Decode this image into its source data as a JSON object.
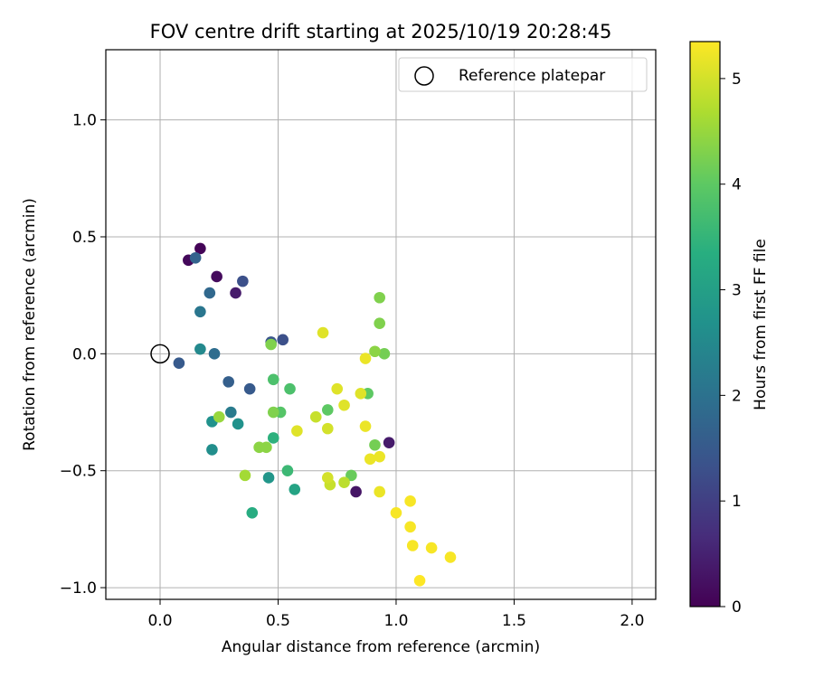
{
  "chart_data": {
    "type": "scatter",
    "title": "FOV centre drift starting at 2025/10/19 20:28:45",
    "xlabel": "Angular distance from reference (arcmin)",
    "ylabel": "Rotation from reference (arcmin)",
    "xlim": [
      -0.23,
      2.1
    ],
    "ylim": [
      -1.05,
      1.3
    ],
    "xticks": [
      0.0,
      0.5,
      1.0,
      1.5,
      2.0
    ],
    "xtick_labels": [
      "0.0",
      "0.5",
      "1.0",
      "1.5",
      "2.0"
    ],
    "yticks": [
      -1.0,
      -0.5,
      0.0,
      0.5,
      1.0
    ],
    "ytick_labels": [
      "−1.0",
      "−0.5",
      "0.0",
      "0.5",
      "1.0"
    ],
    "grid": true,
    "legend": {
      "label": "Reference platepar",
      "location": "top-right"
    },
    "reference_point": {
      "x": 0.0,
      "y": 0.0
    },
    "colorbar": {
      "label": "Hours from first FF file",
      "colormap": "viridis",
      "range": [
        0,
        5.35
      ],
      "ticks": [
        0,
        1,
        2,
        3,
        4,
        5
      ],
      "tick_labels": [
        "0",
        "1",
        "2",
        "3",
        "4",
        "5"
      ]
    },
    "points": [
      {
        "x": 0.17,
        "y": 0.45,
        "h": 0.05
      },
      {
        "x": 0.12,
        "y": 0.4,
        "h": 0.1
      },
      {
        "x": 0.24,
        "y": 0.33,
        "h": 0.15
      },
      {
        "x": 0.32,
        "y": 0.26,
        "h": 0.4
      },
      {
        "x": 0.97,
        "y": -0.38,
        "h": 0.4
      },
      {
        "x": 0.83,
        "y": -0.59,
        "h": 0.3
      },
      {
        "x": 0.35,
        "y": 0.31,
        "h": 1.3
      },
      {
        "x": 0.47,
        "y": 0.05,
        "h": 1.4
      },
      {
        "x": 0.52,
        "y": 0.06,
        "h": 1.3
      },
      {
        "x": 0.08,
        "y": -0.04,
        "h": 1.5
      },
      {
        "x": 0.38,
        "y": -0.15,
        "h": 1.5
      },
      {
        "x": 0.29,
        "y": -0.12,
        "h": 1.6
      },
      {
        "x": 0.15,
        "y": 0.41,
        "h": 1.7
      },
      {
        "x": 0.21,
        "y": 0.26,
        "h": 1.8
      },
      {
        "x": 0.23,
        "y": 0.0,
        "h": 1.9
      },
      {
        "x": 0.17,
        "y": 0.18,
        "h": 2.1
      },
      {
        "x": 0.3,
        "y": -0.25,
        "h": 2.2
      },
      {
        "x": 0.17,
        "y": 0.02,
        "h": 2.5
      },
      {
        "x": 0.22,
        "y": -0.41,
        "h": 2.6
      },
      {
        "x": 0.33,
        "y": -0.3,
        "h": 2.7
      },
      {
        "x": 0.22,
        "y": -0.29,
        "h": 2.7
      },
      {
        "x": 0.46,
        "y": -0.53,
        "h": 2.8
      },
      {
        "x": 0.57,
        "y": -0.58,
        "h": 3.1
      },
      {
        "x": 0.39,
        "y": -0.68,
        "h": 3.3
      },
      {
        "x": 0.48,
        "y": -0.36,
        "h": 3.4
      },
      {
        "x": 0.54,
        "y": -0.5,
        "h": 3.6
      },
      {
        "x": 0.55,
        "y": -0.15,
        "h": 3.8
      },
      {
        "x": 0.48,
        "y": -0.11,
        "h": 3.8
      },
      {
        "x": 0.51,
        "y": -0.25,
        "h": 3.9
      },
      {
        "x": 0.71,
        "y": -0.24,
        "h": 4.0
      },
      {
        "x": 0.88,
        "y": -0.17,
        "h": 4.0
      },
      {
        "x": 0.81,
        "y": -0.52,
        "h": 4.1
      },
      {
        "x": 0.91,
        "y": -0.39,
        "h": 4.2
      },
      {
        "x": 0.95,
        "y": 0.0,
        "h": 4.2
      },
      {
        "x": 0.93,
        "y": 0.24,
        "h": 4.3
      },
      {
        "x": 0.93,
        "y": 0.13,
        "h": 4.3
      },
      {
        "x": 0.91,
        "y": 0.01,
        "h": 4.4
      },
      {
        "x": 0.48,
        "y": -0.25,
        "h": 4.3
      },
      {
        "x": 0.47,
        "y": 0.04,
        "h": 4.3
      },
      {
        "x": 0.45,
        "y": -0.4,
        "h": 4.4
      },
      {
        "x": 0.42,
        "y": -0.4,
        "h": 4.4
      },
      {
        "x": 0.25,
        "y": -0.27,
        "h": 4.5
      },
      {
        "x": 0.36,
        "y": -0.52,
        "h": 4.6
      },
      {
        "x": 0.78,
        "y": -0.55,
        "h": 4.8
      },
      {
        "x": 0.72,
        "y": -0.56,
        "h": 4.9
      },
      {
        "x": 0.71,
        "y": -0.53,
        "h": 5.0
      },
      {
        "x": 0.71,
        "y": -0.32,
        "h": 5.0
      },
      {
        "x": 0.66,
        "y": -0.27,
        "h": 4.9
      },
      {
        "x": 0.58,
        "y": -0.33,
        "h": 5.1
      },
      {
        "x": 0.69,
        "y": 0.09,
        "h": 5.1
      },
      {
        "x": 0.75,
        "y": -0.15,
        "h": 5.1
      },
      {
        "x": 0.78,
        "y": -0.22,
        "h": 5.1
      },
      {
        "x": 0.85,
        "y": -0.17,
        "h": 5.1
      },
      {
        "x": 0.87,
        "y": -0.02,
        "h": 5.2
      },
      {
        "x": 0.87,
        "y": -0.31,
        "h": 5.2
      },
      {
        "x": 0.89,
        "y": -0.45,
        "h": 5.2
      },
      {
        "x": 0.93,
        "y": -0.44,
        "h": 5.2
      },
      {
        "x": 0.93,
        "y": -0.59,
        "h": 5.2
      },
      {
        "x": 1.0,
        "y": -0.68,
        "h": 5.3
      },
      {
        "x": 1.06,
        "y": -0.63,
        "h": 5.3
      },
      {
        "x": 1.06,
        "y": -0.74,
        "h": 5.3
      },
      {
        "x": 1.07,
        "y": -0.82,
        "h": 5.3
      },
      {
        "x": 1.15,
        "y": -0.83,
        "h": 5.3
      },
      {
        "x": 1.23,
        "y": -0.87,
        "h": 5.3
      },
      {
        "x": 1.1,
        "y": -0.97,
        "h": 5.35
      }
    ]
  }
}
